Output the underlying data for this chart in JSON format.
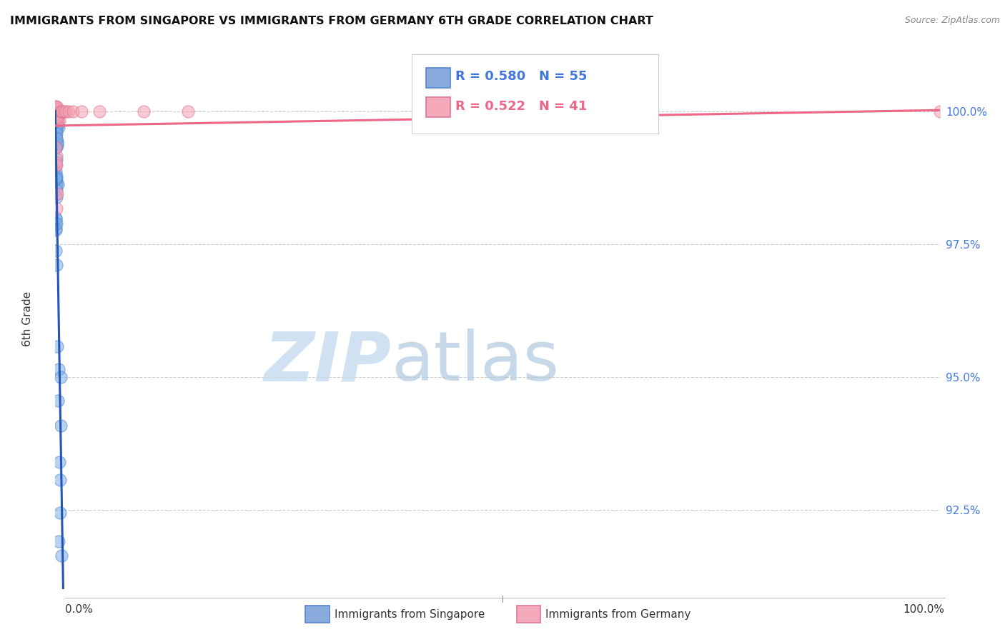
{
  "title": "IMMIGRANTS FROM SINGAPORE VS IMMIGRANTS FROM GERMANY 6TH GRADE CORRELATION CHART",
  "source": "Source: ZipAtlas.com",
  "ylabel": "6th Grade",
  "xlim": [
    0.0,
    100.0
  ],
  "ylim": [
    91.0,
    101.2
  ],
  "ytick_positions": [
    92.5,
    95.0,
    97.5,
    100.0
  ],
  "ytick_labels": [
    "92.5%",
    "95.0%",
    "97.5%",
    "100.0%"
  ],
  "legend_label_series1": "Immigrants from Singapore",
  "legend_label_series2": "Immigrants from Germany",
  "blue_color": "#7caee8",
  "pink_color": "#f4a0b0",
  "blue_edge_color": "#5588cc",
  "pink_edge_color": "#dd7799",
  "blue_line_color": "#2255bb",
  "pink_line_color": "#ee6688",
  "blue_legend_color": "#88aadd",
  "pink_legend_color": "#f4aabb",
  "background_color": "#ffffff",
  "grid_color": "#cccccc",
  "watermark_zip_color": "#c8ddf0",
  "watermark_atlas_color": "#b0cadf",
  "ytick_color": "#4477dd",
  "R_sg": 0.58,
  "N_sg": 55,
  "R_de": 0.522,
  "N_de": 41
}
